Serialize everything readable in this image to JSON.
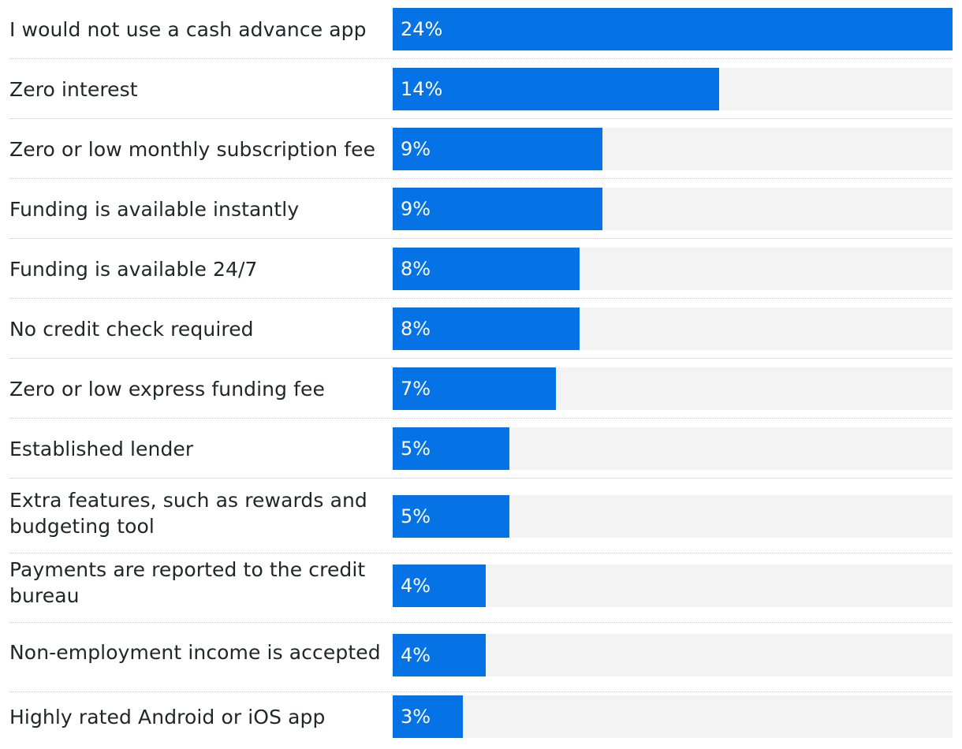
{
  "chart_data": {
    "type": "bar",
    "orientation": "horizontal",
    "categories": [
      "I would not use a cash advance app",
      "Zero interest",
      "Zero or low monthly subscription fee",
      "Funding is available instantly",
      "Funding is available 24/7",
      "No credit check required",
      "Zero or low express funding fee",
      "Established lender",
      "Extra features, such as rewards and budgeting tool",
      "Payments are reported to the credit bureau",
      "Non-employment income is accepted",
      "Highly rated Android or iOS app"
    ],
    "values": [
      24,
      14,
      9,
      9,
      8,
      8,
      7,
      5,
      5,
      4,
      4,
      3
    ],
    "value_labels": [
      "24%",
      "14%",
      "9%",
      "9%",
      "8%",
      "8%",
      "7%",
      "5%",
      "5%",
      "4%",
      "4%",
      "3%"
    ],
    "unit": "%",
    "xlim": [
      0,
      24
    ],
    "title": "",
    "xlabel": "",
    "ylabel": "",
    "grid": false,
    "colors": {
      "bar": "#0572e6",
      "track": "#f3f3f3",
      "label": "#22252a",
      "value_text": "#ffffff",
      "divider": "#c9c9c9"
    }
  }
}
